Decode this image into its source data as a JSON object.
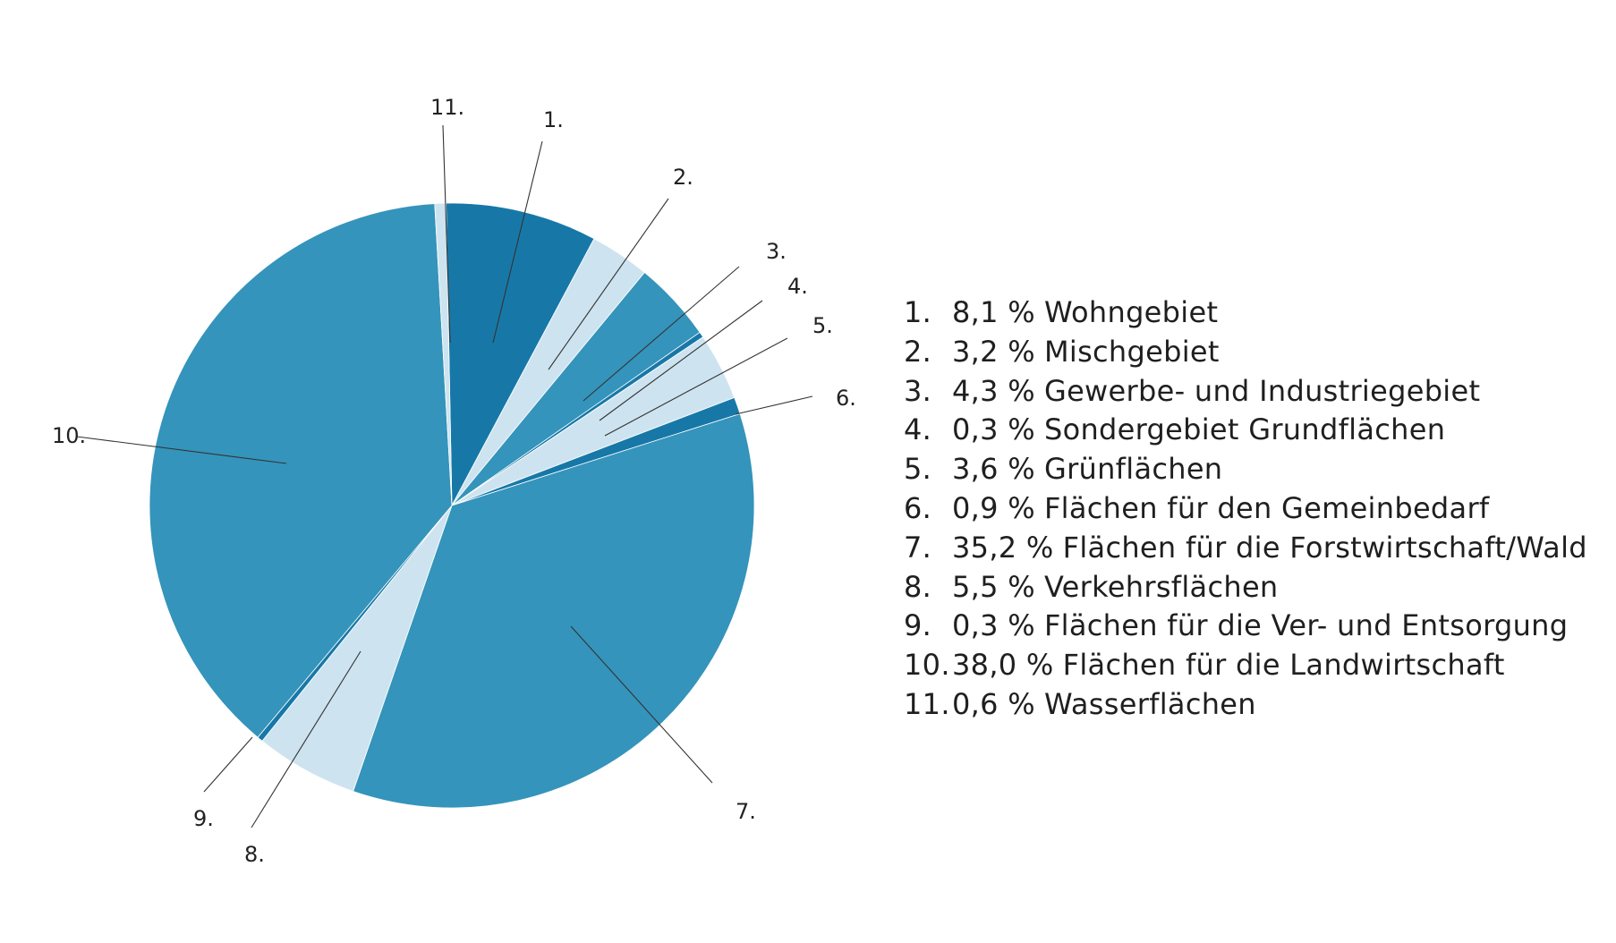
{
  "chart_data": {
    "type": "pie",
    "start_angle_deg": -1.1,
    "direction": "clockwise",
    "colors": {
      "dark": "#1778a8",
      "medium": "#3494bb",
      "light": "#cde4f0"
    },
    "slices": [
      {
        "marker": "1.",
        "pct_label": "8,1 %",
        "label": "Wohngebiet",
        "value": 8.1,
        "color": "#1778a8"
      },
      {
        "marker": "2.",
        "pct_label": "3,2 %",
        "label": "Mischgebiet",
        "value": 3.2,
        "color": "#cde4f0"
      },
      {
        "marker": "3.",
        "pct_label": "4,3 %",
        "label": "Gewerbe- und Industriegebiet",
        "value": 4.3,
        "color": "#3494bb"
      },
      {
        "marker": "4.",
        "pct_label": "0,3 %",
        "label": "Sondergebiet Grundflächen",
        "value": 0.3,
        "color": "#1778a8"
      },
      {
        "marker": "5.",
        "pct_label": "3,6 %",
        "label": "Grünflächen",
        "value": 3.6,
        "color": "#cde4f0"
      },
      {
        "marker": "6.",
        "pct_label": "0,9 %",
        "label": "Flächen für den Gemeinbedarf",
        "value": 0.9,
        "color": "#1778a8"
      },
      {
        "marker": "7.",
        "pct_label": "35,2 %",
        "label": "Flächen für die Forstwirtschaft/Wald",
        "value": 35.2,
        "color": "#3494bb"
      },
      {
        "marker": "8.",
        "pct_label": "5,5 %",
        "label": "Verkehrsflächen",
        "value": 5.5,
        "color": "#cde4f0"
      },
      {
        "marker": "9.",
        "pct_label": "0,3 %",
        "label": "Flächen für die Ver- und Entsorgung",
        "value": 0.3,
        "color": "#1778a8"
      },
      {
        "marker": "10.",
        "pct_label": "38,0 %",
        "label": "Flächen für die Landwirtschaft",
        "value": 38.0,
        "color": "#3494bb"
      },
      {
        "marker": "11.",
        "pct_label": "0,6 %",
        "label": "Wasserflächen",
        "value": 0.6,
        "color": "#cde4f0"
      }
    ]
  }
}
